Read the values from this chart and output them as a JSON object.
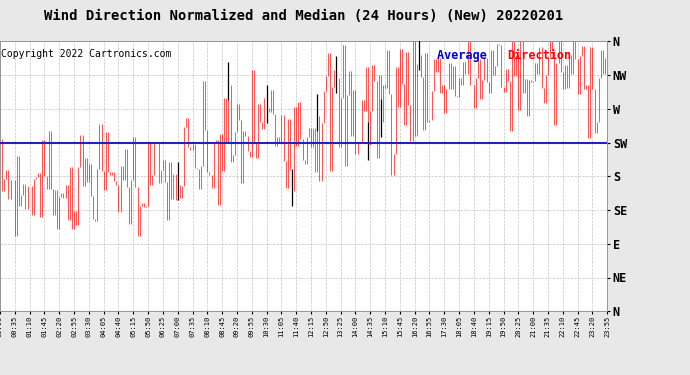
{
  "title": "Wind Direction Normalized and Median (24 Hours) (New) 20220201",
  "copyright": "Copyright 2022 Cartronics.com",
  "avg_label_blue": "Average ",
  "avg_label_red": "Direction",
  "background_color": "#e8e8e8",
  "plot_bg_color": "#ffffff",
  "grid_color": "#aaaaaa",
  "red": "#ff0000",
  "black": "#000000",
  "blue": "#0000cc",
  "avg_line_color": "#2222bb",
  "title_fontsize": 10,
  "copyright_fontsize": 7,
  "ytick_labels": [
    "N",
    "NW",
    "W",
    "SW",
    "S",
    "SE",
    "E",
    "NE",
    "N"
  ],
  "ytick_values": [
    360,
    315,
    270,
    225,
    180,
    135,
    90,
    45,
    0
  ],
  "ylim": [
    0,
    360
  ],
  "num_points": 288,
  "avg_value": 225
}
